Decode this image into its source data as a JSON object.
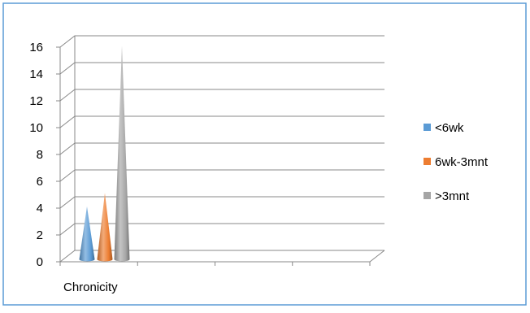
{
  "chart_data": {
    "type": "bar",
    "bar_shape": "3d-cone",
    "categories": [
      "Chronicity"
    ],
    "series": [
      {
        "name": "<6wk",
        "values": [
          4
        ],
        "color": "#5B9BD5"
      },
      {
        "name": "6wk-3mnt",
        "values": [
          5
        ],
        "color": "#ED7D31"
      },
      {
        "name": ">3mnt",
        "values": [
          16
        ],
        "color": "#A5A5A5"
      }
    ],
    "ylim": [
      0,
      16
    ],
    "yticks": [
      "0",
      "2",
      "4",
      "6",
      "8",
      "10",
      "12",
      "14",
      "16"
    ],
    "grid": true,
    "legend_position": "right",
    "frame_color": "#5B9BD5"
  }
}
